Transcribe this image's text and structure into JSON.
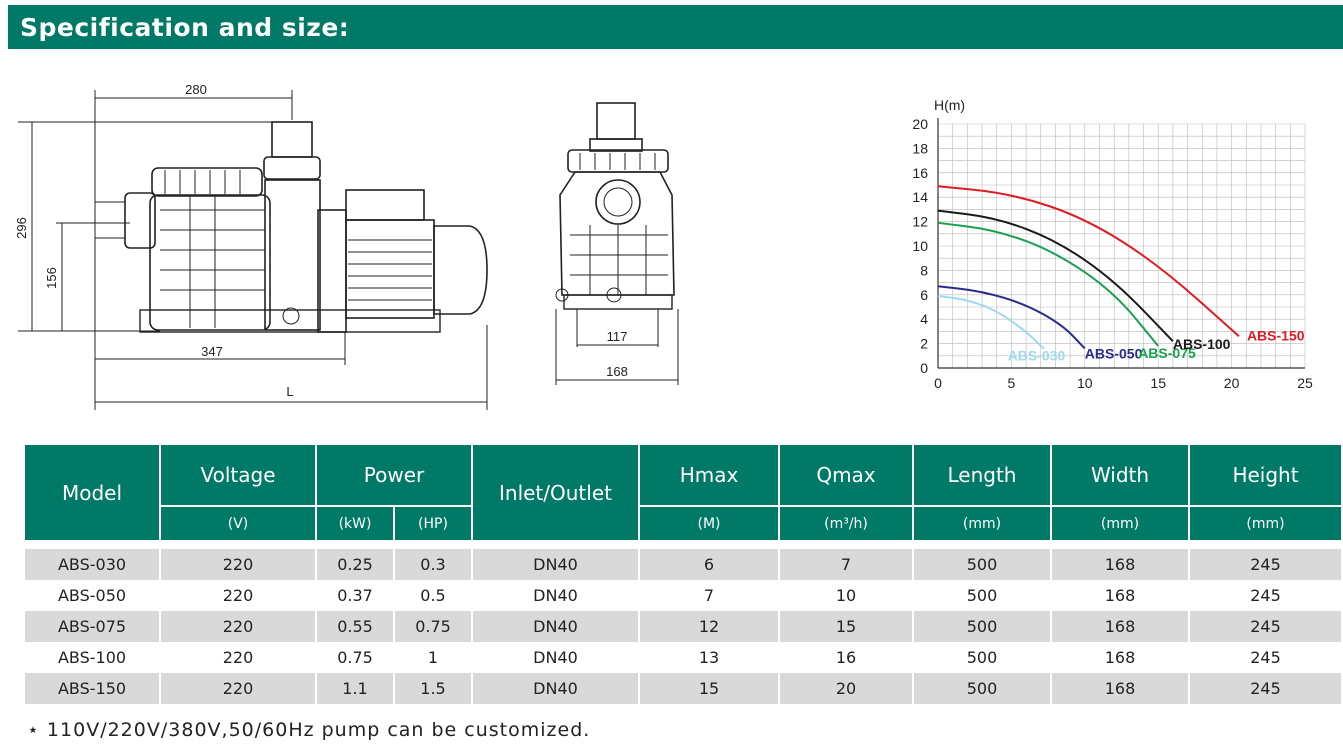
{
  "header": {
    "title": "Specification and size:"
  },
  "drawing_side": {
    "dims": {
      "top": "280",
      "height": "296",
      "inlet": "156",
      "base": "347",
      "total": "L"
    }
  },
  "drawing_front": {
    "dims": {
      "inner": "117",
      "outer": "168"
    }
  },
  "chart_data": {
    "type": "line",
    "ylabel": "H(m)",
    "xlabel": "",
    "xlim": [
      0,
      25
    ],
    "ylim": [
      0,
      20
    ],
    "x_ticks": [
      "0",
      "5",
      "10",
      "15",
      "20",
      "25"
    ],
    "y_ticks": [
      "0",
      "2",
      "4",
      "6",
      "8",
      "10",
      "12",
      "14",
      "16",
      "18",
      "20"
    ],
    "grid": true,
    "series": [
      {
        "name": "ABS-030",
        "color": "#9fd9f0",
        "points": [
          [
            0,
            5.9
          ],
          [
            2,
            5.6
          ],
          [
            4,
            4.7
          ],
          [
            6,
            3.0
          ],
          [
            7.2,
            1.6
          ]
        ]
      },
      {
        "name": "ABS-050",
        "color": "#2a2a8c",
        "points": [
          [
            0,
            6.7
          ],
          [
            3,
            6.3
          ],
          [
            6,
            5.2
          ],
          [
            8.5,
            3.5
          ],
          [
            10,
            1.6
          ]
        ]
      },
      {
        "name": "ABS-075",
        "color": "#1aa050",
        "points": [
          [
            0,
            11.9
          ],
          [
            4,
            11.3
          ],
          [
            8,
            9.5
          ],
          [
            12,
            6.2
          ],
          [
            15,
            1.8
          ]
        ]
      },
      {
        "name": "ABS-100",
        "color": "#1a1a1a",
        "points": [
          [
            0,
            12.9
          ],
          [
            4,
            12.3
          ],
          [
            8,
            10.5
          ],
          [
            12,
            7.2
          ],
          [
            16,
            2.2
          ]
        ]
      },
      {
        "name": "ABS-150",
        "color": "#e01b24",
        "points": [
          [
            0,
            14.9
          ],
          [
            5,
            14.3
          ],
          [
            10,
            12.3
          ],
          [
            15,
            8.5
          ],
          [
            20.5,
            2.6
          ]
        ]
      }
    ]
  },
  "table": {
    "headers": {
      "model": "Model",
      "voltage": "Voltage",
      "power": "Power",
      "inlet": "Inlet/Outlet",
      "hmax": "Hmax",
      "qmax": "Qmax",
      "length": "Length",
      "width": "Width",
      "height": "Height"
    },
    "units": {
      "voltage": "(V)",
      "power_kw": "(kW)",
      "power_hp": "(HP)",
      "hmax": "(M)",
      "qmax": "(m³/h)",
      "length": "(mm)",
      "width": "(mm)",
      "height": "(mm)"
    },
    "rows": [
      {
        "model": "ABS-030",
        "voltage": "220",
        "kw": "0.25",
        "hp": "0.3",
        "inlet": "DN40",
        "hmax": "6",
        "qmax": "7",
        "length": "500",
        "width": "168",
        "height": "245"
      },
      {
        "model": "ABS-050",
        "voltage": "220",
        "kw": "0.37",
        "hp": "0.5",
        "inlet": "DN40",
        "hmax": "7",
        "qmax": "10",
        "length": "500",
        "width": "168",
        "height": "245"
      },
      {
        "model": "ABS-075",
        "voltage": "220",
        "kw": "0.55",
        "hp": "0.75",
        "inlet": "DN40",
        "hmax": "12",
        "qmax": "15",
        "length": "500",
        "width": "168",
        "height": "245"
      },
      {
        "model": "ABS-100",
        "voltage": "220",
        "kw": "0.75",
        "hp": "1",
        "inlet": "DN40",
        "hmax": "13",
        "qmax": "16",
        "length": "500",
        "width": "168",
        "height": "245"
      },
      {
        "model": "ABS-150",
        "voltage": "220",
        "kw": "1.1",
        "hp": "1.5",
        "inlet": "DN40",
        "hmax": "15",
        "qmax": "20",
        "length": "500",
        "width": "168",
        "height": "245"
      }
    ]
  },
  "footnote": "⋆ 110V/220V/380V,50/60Hz pump can be customized."
}
